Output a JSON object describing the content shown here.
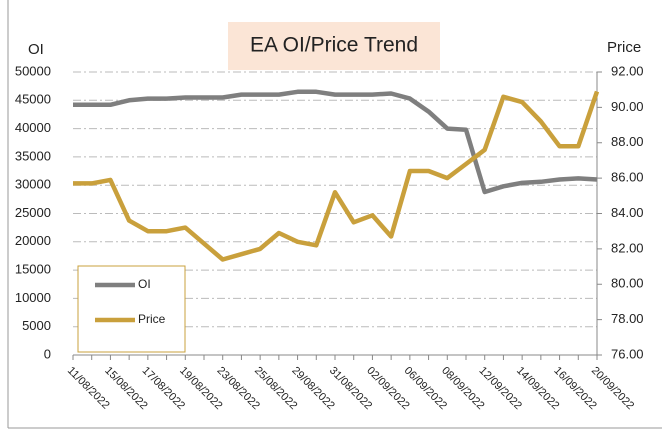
{
  "chart_data": {
    "type": "line",
    "title": "EA OI/Price Trend",
    "y_label": "OI",
    "y2_label": "Price",
    "categories": [
      "11/08/2022",
      null,
      "15/08/2022",
      null,
      "17/08/2022",
      null,
      "19/08/2022",
      null,
      "23/08/2022",
      null,
      "25/08/2022",
      null,
      "29/08/2022",
      null,
      "31/08/2022",
      null,
      "02/09/2022",
      null,
      "06/09/2022",
      null,
      "08/09/2022",
      null,
      "12/09/2022",
      null,
      "14/09/2022",
      null,
      "16/09/2022",
      null,
      "20/09/2022"
    ],
    "series": [
      {
        "name": "OI",
        "color": "#7f7f7f",
        "values": [
          44200,
          44200,
          44200,
          45000,
          45300,
          45300,
          45500,
          45500,
          45500,
          46000,
          46000,
          46000,
          46500,
          46500,
          46000,
          46000,
          46000,
          46200,
          45300,
          43000,
          40000,
          39800,
          28800,
          29800,
          30400,
          30600,
          31000,
          31200,
          31000
        ]
      },
      {
        "name": "Price",
        "color": "#c9a03c",
        "axis": "y2",
        "values": [
          85.7,
          85.7,
          85.9,
          83.6,
          83.0,
          83.0,
          83.2,
          82.3,
          81.4,
          81.7,
          82.0,
          82.9,
          82.4,
          82.2,
          85.2,
          83.5,
          83.9,
          82.7,
          86.4,
          86.4,
          86.0,
          86.8,
          87.6,
          90.6,
          90.3,
          89.2,
          87.8,
          87.8,
          90.9
        ]
      }
    ],
    "ylim": [
      0,
      50000
    ],
    "yticks": [
      0,
      5000,
      10000,
      15000,
      20000,
      25000,
      30000,
      35000,
      40000,
      45000,
      50000
    ],
    "y2lim": [
      76,
      92
    ],
    "y2ticks": [
      {
        "value": 76,
        "label": "76.00"
      },
      {
        "value": 78,
        "label": "78.00"
      },
      {
        "value": 80,
        "label": "80.00"
      },
      {
        "value": 82,
        "label": "82.00"
      },
      {
        "value": 84,
        "label": "84.00"
      },
      {
        "value": 86,
        "label": "86.00"
      },
      {
        "value": 88,
        "label": "88.00"
      },
      {
        "value": 90,
        "label": "90.00"
      },
      {
        "value": 92,
        "label": "92.00"
      }
    ],
    "grid": true,
    "legend": "lower left"
  }
}
